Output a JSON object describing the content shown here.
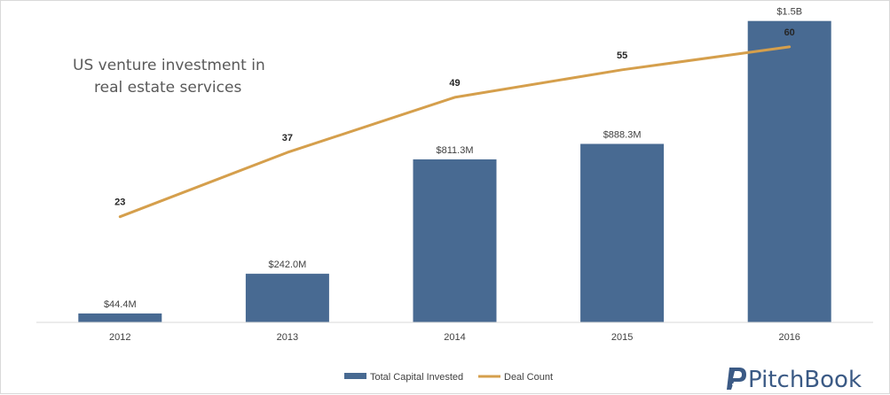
{
  "chart_data": {
    "type": "bar",
    "title": [
      "US venture investment in",
      "real estate services"
    ],
    "categories": [
      "2012",
      "2013",
      "2014",
      "2015",
      "2016"
    ],
    "series": [
      {
        "name": "Total Capital Invested",
        "type": "bar",
        "color": "#486a92",
        "values": [
          44.4,
          242.0,
          811.3,
          888.3,
          1500
        ],
        "labels": [
          "$44.4M",
          "$242.0M",
          "$811.3M",
          "$888.3M",
          "$1.5B"
        ]
      },
      {
        "name": "Deal Count",
        "type": "line",
        "color": "#d59f4c",
        "values": [
          23,
          37,
          49,
          55,
          60
        ],
        "labels": [
          "23",
          "37",
          "49",
          "55",
          "60"
        ]
      }
    ],
    "bar_axis_max": 1600,
    "line_axis_max": 70,
    "legend": "bottom",
    "grid": false
  },
  "brand": {
    "name": "PitchBook",
    "icon": "pitchbook-logo-icon"
  }
}
